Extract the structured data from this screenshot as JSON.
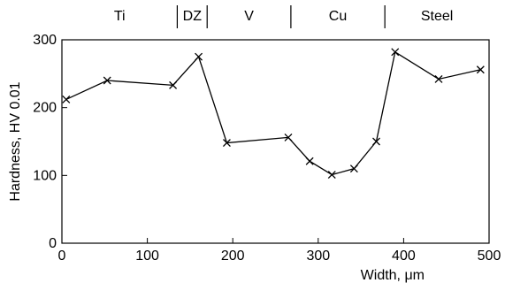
{
  "chart_data": {
    "type": "line",
    "title": "",
    "xlabel": "Width, μm",
    "ylabel": "Hardness, HV 0.01",
    "xlim": [
      0,
      500
    ],
    "ylim": [
      0,
      300
    ],
    "x_ticks": [
      0,
      100,
      200,
      300,
      400,
      500
    ],
    "y_ticks": [
      0,
      100,
      200,
      300
    ],
    "x_tick_labels": [
      "0",
      "100",
      "200",
      "300",
      "400",
      "500"
    ],
    "y_tick_labels": [
      "0",
      "100",
      "200",
      "300"
    ],
    "grid": false,
    "marker": "x",
    "regions": [
      {
        "label": "Ti",
        "start": 0,
        "end": 135
      },
      {
        "label": "DZ",
        "start": 135,
        "end": 170
      },
      {
        "label": "V",
        "start": 170,
        "end": 268
      },
      {
        "label": "Cu",
        "start": 268,
        "end": 378
      },
      {
        "label": "Steel",
        "start": 378,
        "end": 500
      }
    ],
    "series": [
      {
        "x": [
          5,
          53,
          130,
          160,
          193,
          265,
          290,
          316,
          342,
          368,
          390,
          441,
          490
        ],
        "y": [
          212,
          240,
          233,
          275,
          148,
          156,
          121,
          101,
          110,
          150,
          282,
          242,
          256
        ]
      }
    ]
  }
}
